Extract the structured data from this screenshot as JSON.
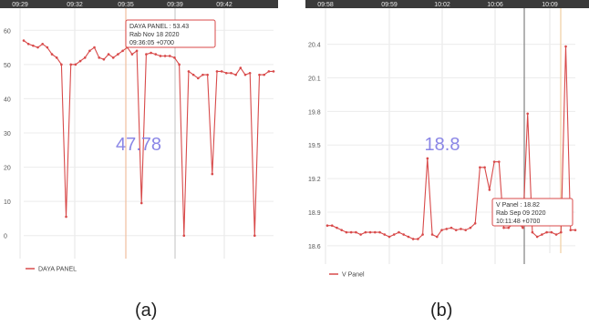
{
  "figure": {
    "captions": [
      "(a)",
      "(b)"
    ]
  },
  "chart_data": [
    {
      "type": "line",
      "title": "",
      "xlabel": "",
      "ylabel": "",
      "x_tick_labels": [
        "09:29",
        "09:32",
        "09:35",
        "09:39",
        "09:42"
      ],
      "y_ticks": [
        0,
        10,
        20,
        30,
        40,
        50,
        60
      ],
      "ylim": [
        -3,
        63
      ],
      "grid": true,
      "legend": {
        "position": "bottom-left",
        "label": "DAYA PANEL"
      },
      "big_value": "47.78",
      "tooltip": {
        "lines": [
          "DAYA PANEL : 53.43",
          "Rab Nov 18 2020",
          "09:36:05 +0700"
        ]
      },
      "series": [
        {
          "name": "DAYA PANEL",
          "color": "#d84a4a",
          "values": [
            57,
            56,
            55.5,
            55,
            56,
            55,
            53,
            52,
            50,
            5.5,
            50,
            50,
            51,
            52,
            54,
            55,
            52,
            51.5,
            53,
            52,
            53,
            54,
            55,
            53,
            54,
            9.5,
            53,
            53.4,
            53,
            52.5,
            52.5,
            52.5,
            52,
            50,
            0,
            48,
            47,
            46,
            47,
            47,
            18,
            48,
            48,
            47.5,
            47.5,
            47,
            49,
            47,
            47.5,
            0,
            47,
            47,
            48,
            48
          ]
        }
      ]
    },
    {
      "type": "line",
      "title": "",
      "xlabel": "",
      "ylabel": "",
      "x_tick_labels": [
        "09:58",
        "09:59",
        "10:02",
        "10:06",
        "10:09"
      ],
      "y_ticks": [
        18.6,
        18.9,
        19.2,
        19.5,
        19.8,
        20.1,
        20.4
      ],
      "ylim": [
        18.55,
        20.6
      ],
      "grid": true,
      "legend": {
        "position": "bottom-left",
        "label": "V Panel"
      },
      "big_value": "18.8",
      "tooltip": {
        "lines": [
          "V Panel : 18.82",
          "Rab Sep 09 2020",
          "10:11:48 +0700"
        ]
      },
      "series": [
        {
          "name": "V Panel",
          "color": "#d84a4a",
          "values": [
            18.78,
            18.78,
            18.76,
            18.74,
            18.72,
            18.72,
            18.72,
            18.7,
            18.72,
            18.72,
            18.72,
            18.72,
            18.7,
            18.68,
            18.7,
            18.72,
            18.7,
            18.68,
            18.66,
            18.66,
            18.7,
            19.38,
            18.7,
            18.68,
            18.74,
            18.75,
            18.76,
            18.74,
            18.75,
            18.74,
            18.76,
            18.8,
            19.3,
            19.3,
            19.1,
            19.35,
            19.35,
            18.76,
            18.76,
            18.8,
            18.8,
            18.76,
            19.78,
            18.72,
            18.68,
            18.7,
            18.72,
            18.72,
            18.7,
            18.72,
            20.38,
            18.74,
            18.74
          ]
        }
      ]
    }
  ]
}
